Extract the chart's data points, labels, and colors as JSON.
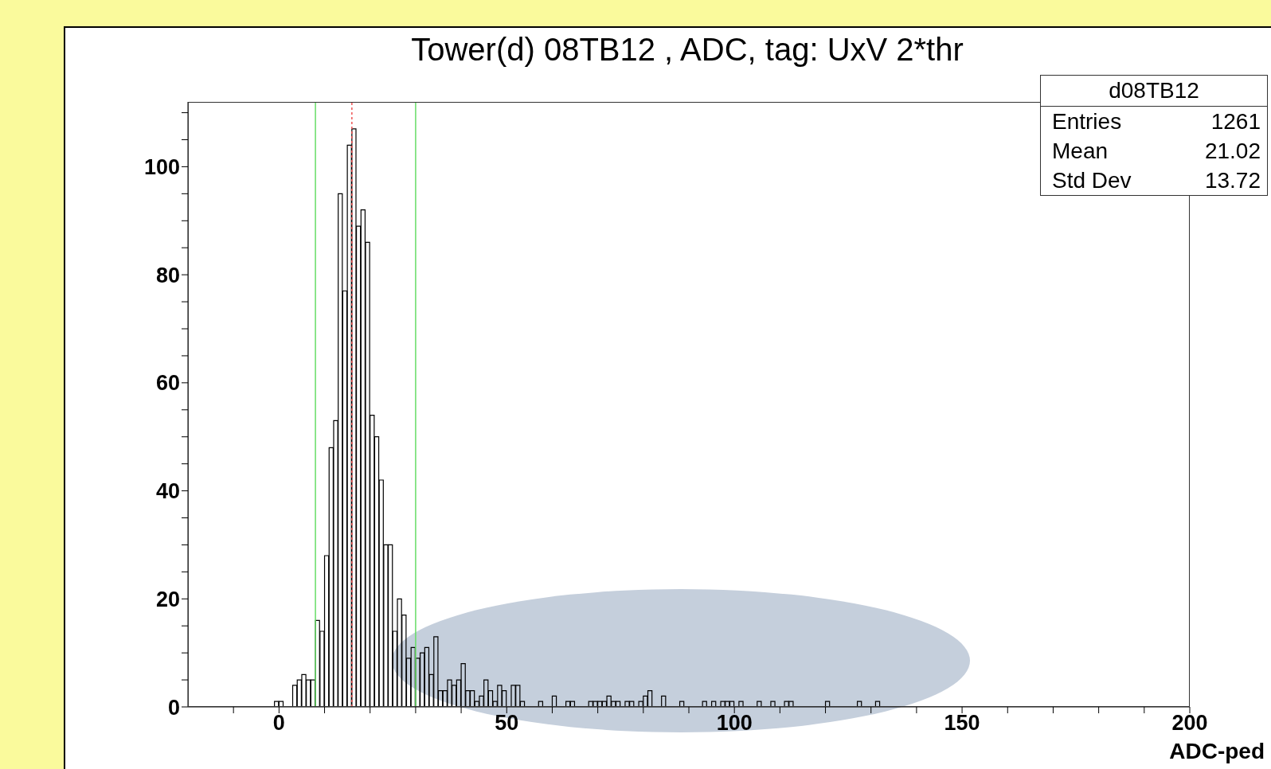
{
  "chart_data": {
    "type": "histogram",
    "title": "Tower(d) 08TB12 , ADC, tag: UxV 2*thr",
    "xlabel": "ADC-ped",
    "color": "#000000",
    "bins": [
      -1,
      0,
      1,
      2,
      3,
      4,
      5,
      6,
      7,
      8,
      9,
      10,
      11,
      12,
      13,
      14,
      15,
      16,
      17,
      18,
      19,
      20,
      21,
      22,
      23,
      24,
      25,
      26,
      27,
      28,
      29,
      30,
      31,
      32,
      33,
      34,
      35,
      36,
      37,
      38,
      39,
      40,
      41,
      42,
      43,
      44,
      45,
      46,
      47,
      48,
      49,
      50,
      51,
      52,
      53,
      54,
      55,
      56,
      57,
      58,
      59,
      60,
      61,
      62,
      63,
      64,
      65,
      66,
      67,
      68,
      69,
      70,
      71,
      72,
      73,
      74,
      75,
      76,
      77,
      78,
      79,
      80,
      81,
      82,
      83,
      84,
      85,
      86,
      87,
      88,
      89,
      90,
      91,
      92,
      93,
      94,
      95,
      96,
      97,
      98,
      99,
      100,
      101,
      102,
      103,
      104,
      105,
      106,
      107,
      108,
      109,
      110,
      111,
      112,
      113,
      114,
      115,
      116,
      117,
      118,
      119,
      120,
      121,
      122,
      123,
      124,
      125,
      126,
      127,
      128,
      129,
      130,
      131,
      132
    ],
    "values": [
      1,
      1,
      0,
      0,
      4,
      5,
      6,
      5,
      5,
      16,
      14,
      28,
      48,
      53,
      95,
      77,
      104,
      107,
      89,
      92,
      86,
      54,
      50,
      42,
      30,
      30,
      14,
      20,
      17,
      9,
      11,
      9,
      10,
      11,
      6,
      13,
      3,
      3,
      5,
      4,
      5,
      8,
      3,
      3,
      1,
      2,
      5,
      3,
      1,
      4,
      3,
      0,
      4,
      4,
      1,
      0,
      0,
      0,
      1,
      0,
      0,
      2,
      0,
      0,
      1,
      1,
      0,
      0,
      0,
      1,
      1,
      1,
      1,
      2,
      1,
      1,
      0,
      1,
      1,
      0,
      1,
      2,
      3,
      0,
      0,
      2,
      0,
      0,
      0,
      1,
      0,
      0,
      0,
      0,
      1,
      0,
      1,
      0,
      1,
      1,
      1,
      0,
      1,
      0,
      0,
      0,
      1,
      0,
      0,
      1,
      0,
      0,
      1,
      1,
      0,
      0,
      0,
      0,
      0,
      0,
      0,
      1,
      0,
      0,
      0,
      0,
      0,
      0,
      1,
      0,
      0,
      0,
      1
    ],
    "xlim": [
      -20,
      200
    ],
    "xticks": [
      {
        "value": -10,
        "label": null
      },
      0,
      {
        "value": 10,
        "label": null
      },
      {
        "value": 20,
        "label": null
      },
      {
        "value": 30,
        "label": null
      },
      {
        "value": 40,
        "label": null
      },
      50,
      {
        "value": 60,
        "label": null
      },
      {
        "value": 70,
        "label": null
      },
      {
        "value": 80,
        "label": null
      },
      {
        "value": 90,
        "label": null
      },
      100,
      {
        "value": 110,
        "label": null
      },
      {
        "value": 120,
        "label": null
      },
      {
        "value": 130,
        "label": null
      },
      {
        "value": 140,
        "label": null
      },
      150,
      {
        "value": 160,
        "label": null
      },
      {
        "value": 170,
        "label": null
      },
      {
        "value": 180,
        "label": null
      },
      {
        "value": 190,
        "label": null
      },
      200
    ],
    "ylim": [
      0,
      112
    ],
    "yticks": [
      0,
      {
        "value": 5,
        "label": null
      },
      {
        "value": 10,
        "label": null
      },
      {
        "value": 15,
        "label": null
      },
      20,
      {
        "value": 25,
        "label": null
      },
      {
        "value": 30,
        "label": null
      },
      {
        "value": 35,
        "label": null
      },
      40,
      {
        "value": 45,
        "label": null
      },
      {
        "value": 50,
        "label": null
      },
      {
        "value": 55,
        "label": null
      },
      60,
      {
        "value": 65,
        "label": null
      },
      {
        "value": 70,
        "label": null
      },
      {
        "value": 75,
        "label": null
      },
      80,
      {
        "value": 85,
        "label": null
      },
      {
        "value": 90,
        "label": null
      },
      {
        "value": 95,
        "label": null
      },
      100,
      {
        "value": 105,
        "label": null
      },
      {
        "value": 110,
        "label": null
      }
    ],
    "ref_lines": [
      {
        "axis": "x",
        "value": 8,
        "color": "#66dd66",
        "line_style": "solid"
      },
      {
        "axis": "x",
        "value": 16,
        "color": "#ee5555",
        "line_style": "dotted"
      },
      {
        "axis": "x",
        "value": 30,
        "color": "#66dd66",
        "line_style": "solid"
      }
    ],
    "annotations": [
      "d08TB12",
      "Entries",
      "1261",
      "Mean",
      "21.02",
      "Std Dev",
      "13.72"
    ]
  }
}
